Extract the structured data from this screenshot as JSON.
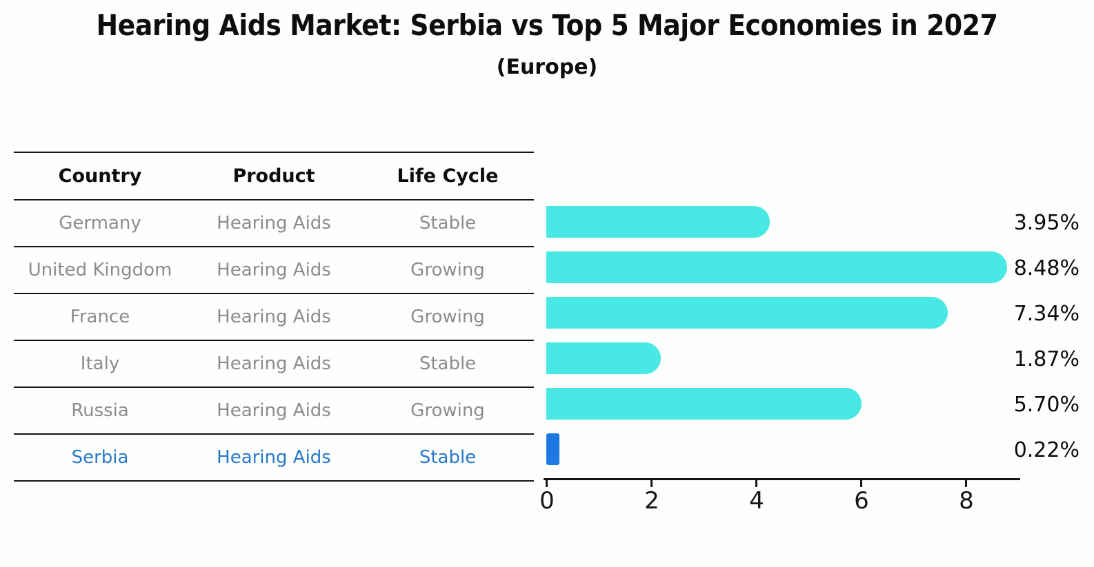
{
  "title": "Hearing Aids Market: Serbia vs Top 5 Major Economies in 2027",
  "subtitle": "(Europe)",
  "table": {
    "headers": [
      "Country",
      "Product",
      "Life Cycle"
    ],
    "rows": [
      {
        "country": "Germany",
        "product": "Hearing Aids",
        "life_cycle": "Stable",
        "highlight": false
      },
      {
        "country": "United Kingdom",
        "product": "Hearing Aids",
        "life_cycle": "Growing",
        "highlight": false
      },
      {
        "country": "France",
        "product": "Hearing Aids",
        "life_cycle": "Growing",
        "highlight": false
      },
      {
        "country": "Italy",
        "product": "Hearing Aids",
        "life_cycle": "Stable",
        "highlight": false
      },
      {
        "country": "Russia",
        "product": "Hearing Aids",
        "life_cycle": "Growing",
        "highlight": true
      }
    ]
  },
  "chart_data": {
    "type": "bar",
    "orientation": "horizontal",
    "title": "Hearing Aids Market: Serbia vs Top 5 Major Economies in 2027",
    "subtitle": "(Europe)",
    "categories": [
      "Germany",
      "United Kingdom",
      "France",
      "Italy",
      "Russia",
      "Serbia"
    ],
    "values": [
      3.95,
      8.48,
      7.34,
      1.87,
      5.7,
      0.22
    ],
    "value_labels": [
      "3.95%",
      "8.48%",
      "7.34%",
      "1.87%",
      "5.70%",
      "0.22%"
    ],
    "x_ticks": [
      0,
      2,
      4,
      6,
      8
    ],
    "xlim": [
      0,
      9
    ],
    "grid": false,
    "legend": "none",
    "bar_color": "#48e8e4",
    "highlight_color": "#1d78e3",
    "highlight_index": 5,
    "highlight_category": "Serbia",
    "highlight_text_color": "#2878c8"
  }
}
